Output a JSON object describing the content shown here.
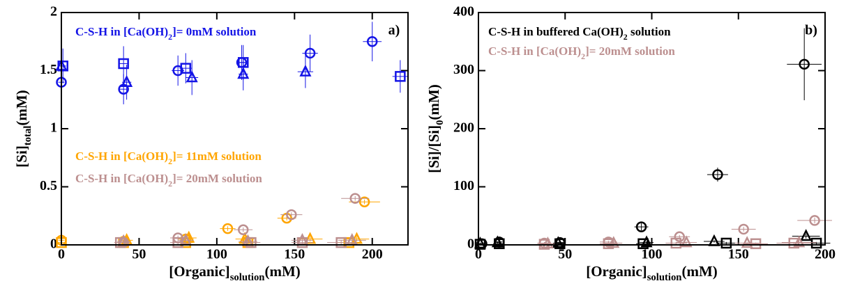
{
  "chart_data": [
    {
      "type": "scatter",
      "annotation": "a)",
      "xlabel": [
        "[Organic]",
        "solution",
        "(mM)"
      ],
      "ylabel": [
        "[Si]",
        "total",
        "(mM)"
      ],
      "xlim": [
        0,
        223
      ],
      "xticks": [
        0,
        50,
        100,
        150,
        200
      ],
      "ylim": [
        0,
        2
      ],
      "yticks": [
        0,
        0.5,
        1,
        1.5,
        2
      ],
      "series": [
        {
          "name": "C-S-H in [Ca(OH)2]= 0mM solution",
          "color": "#1414e6",
          "markers": [
            "circle",
            "circle",
            "circle",
            "circle",
            "circle",
            "circle",
            "square",
            "square",
            "square",
            "square",
            "square",
            "triangle",
            "triangle",
            "triangle",
            "triangle",
            "triangle"
          ],
          "x": [
            0,
            40,
            75,
            116,
            160,
            200,
            1,
            40,
            80,
            117,
            218,
            0,
            42,
            84,
            117,
            157
          ],
          "values": [
            1.4,
            1.34,
            1.5,
            1.57,
            1.65,
            1.75,
            1.54,
            1.56,
            1.52,
            1.57,
            1.45,
            1.54,
            1.4,
            1.44,
            1.47,
            1.49
          ],
          "xerr": [
            2,
            3,
            4,
            3,
            5,
            6,
            2,
            3,
            4,
            3,
            5,
            2,
            3,
            4,
            3,
            5
          ],
          "yerr": [
            0.15,
            0.13,
            0.13,
            0.15,
            0.16,
            0.17,
            0.15,
            0.15,
            0.13,
            0.15,
            0.14,
            0.15,
            0.15,
            0.15,
            0.14,
            0.14
          ]
        },
        {
          "name": "C-S-H in [Ca(OH)2]= 11mM solution",
          "color": "#ffa500",
          "markers": [
            "circle",
            "circle",
            "circle",
            "circle",
            "circle",
            "circle",
            "square",
            "square",
            "square",
            "square",
            "square",
            "triangle",
            "triangle",
            "triangle",
            "triangle",
            "triangle"
          ],
          "x": [
            0,
            40,
            80,
            107,
            145,
            195,
            0,
            40,
            80,
            120,
            185,
            42,
            82,
            118,
            160,
            190
          ],
          "values": [
            0.04,
            0.03,
            0.05,
            0.14,
            0.23,
            0.37,
            0.02,
            0.02,
            0.02,
            0.02,
            0.02,
            0.04,
            0.06,
            0.05,
            0.05,
            0.05
          ],
          "xerr": [
            2,
            4,
            5,
            5,
            6,
            10,
            2,
            4,
            5,
            6,
            8,
            4,
            5,
            6,
            8,
            8
          ],
          "yerr": [
            0.02,
            0.02,
            0.02,
            0.02,
            0.02,
            0.02,
            0.02,
            0.02,
            0.02,
            0.02,
            0.02,
            0.02,
            0.02,
            0.02,
            0.02,
            0.02
          ]
        },
        {
          "name": "C-S-H in [Ca(OH)2]= 20mM solution",
          "color": "#bc8f8f",
          "markers": [
            "circle",
            "circle",
            "circle",
            "circle",
            "circle",
            "square",
            "square",
            "square",
            "square",
            "square",
            "triangle",
            "triangle",
            "triangle",
            "triangle",
            "triangle"
          ],
          "x": [
            40,
            75,
            117,
            148,
            189,
            38,
            75,
            122,
            155,
            180,
            40,
            80,
            120,
            155,
            187
          ],
          "values": [
            0.02,
            0.06,
            0.13,
            0.26,
            0.4,
            0.02,
            0.02,
            0.02,
            0.02,
            0.02,
            0.03,
            0.04,
            0.03,
            0.04,
            0.04
          ],
          "xerr": [
            4,
            5,
            6,
            7,
            9,
            4,
            5,
            6,
            7,
            9,
            4,
            5,
            6,
            7,
            9
          ],
          "yerr": [
            0.02,
            0.02,
            0.02,
            0.02,
            0.02,
            0.02,
            0.02,
            0.02,
            0.02,
            0.02,
            0.02,
            0.02,
            0.02,
            0.02,
            0.02
          ]
        }
      ]
    },
    {
      "type": "scatter",
      "annotation": "b)",
      "xlabel": [
        "[Organic]",
        "solution",
        "(mM)"
      ],
      "ylabel": [
        "[Si]/[Si]",
        "0",
        "(mM)"
      ],
      "xlim": [
        0,
        200
      ],
      "xticks": [
        0,
        50,
        100,
        150,
        200
      ],
      "ylim": [
        0,
        400
      ],
      "yticks": [
        0,
        100,
        200,
        300,
        400
      ],
      "series": [
        {
          "name": "C-S-H in buffered Ca(OH)2 solution",
          "color": "#000000",
          "markers": [
            "circle",
            "circle",
            "circle",
            "circle",
            "circle",
            "circle",
            "square",
            "square",
            "square",
            "square",
            "square",
            "square",
            "triangle",
            "triangle",
            "triangle",
            "triangle",
            "triangle",
            "triangle"
          ],
          "x": [
            2,
            12,
            47,
            94,
            138,
            188,
            1,
            12,
            47,
            95,
            143,
            195,
            1,
            11,
            46,
            97,
            136,
            189
          ],
          "values": [
            2,
            5,
            4,
            31,
            121,
            311,
            1,
            2,
            2,
            2,
            3,
            3,
            2,
            4,
            3,
            4,
            6,
            15
          ],
          "xerr": [
            2,
            2,
            3,
            4,
            6,
            10,
            2,
            2,
            3,
            4,
            6,
            8,
            2,
            2,
            3,
            4,
            6,
            8
          ],
          "yerr": [
            3,
            3,
            3,
            6,
            12,
            62,
            2,
            2,
            2,
            2,
            2,
            2,
            2,
            2,
            2,
            2,
            2,
            4
          ]
        },
        {
          "name": "C-S-H in [Ca(OH)2]= 20mM solution",
          "color": "#bc8f8f",
          "markers": [
            "circle",
            "circle",
            "circle",
            "circle",
            "circle",
            "square",
            "square",
            "square",
            "square",
            "square",
            "triangle",
            "triangle",
            "triangle",
            "triangle",
            "triangle"
          ],
          "x": [
            38,
            75,
            116,
            153,
            194,
            38,
            75,
            114,
            160,
            182,
            40,
            78,
            120,
            155,
            185
          ],
          "values": [
            3,
            5,
            14,
            27,
            42,
            1,
            2,
            3,
            2,
            3,
            2,
            3,
            4,
            3,
            4
          ],
          "xerr": [
            4,
            5,
            6,
            7,
            10,
            4,
            5,
            6,
            7,
            10,
            4,
            5,
            6,
            7,
            10
          ],
          "yerr": [
            2,
            2,
            3,
            4,
            5,
            2,
            2,
            2,
            2,
            2,
            2,
            2,
            2,
            2,
            2
          ]
        }
      ]
    }
  ]
}
